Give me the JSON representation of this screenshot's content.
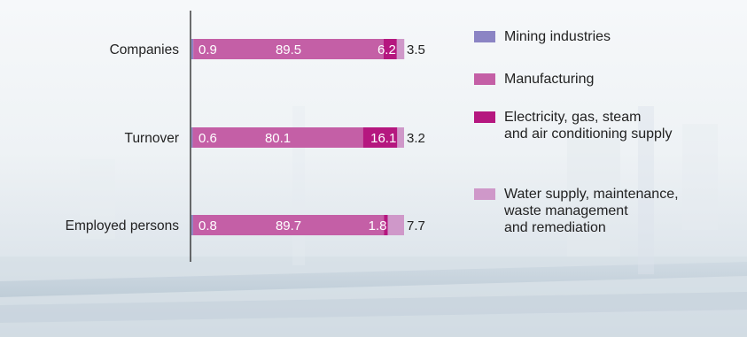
{
  "chart_data": {
    "type": "bar",
    "stacked": true,
    "orientation": "horizontal",
    "categories": [
      "Companies",
      "Turnover",
      "Employed persons"
    ],
    "series": [
      {
        "name": "Mining industries",
        "color": "#8b84c4",
        "values": [
          0.9,
          0.6,
          0.8
        ]
      },
      {
        "name": "Manufacturing",
        "color": "#c45fa6",
        "values": [
          89.5,
          80.1,
          89.7
        ]
      },
      {
        "name": "Electricity, gas, steam\nand air conditioning supply",
        "color": "#b5177f",
        "values": [
          6.2,
          16.1,
          1.8
        ]
      },
      {
        "name": "Water supply, maintenance,\nwaste management\nand remediation",
        "color": "#cf98c9",
        "values": [
          3.5,
          3.2,
          7.7
        ]
      }
    ],
    "xlim": [
      0,
      100
    ],
    "legend_position": "right",
    "grid": false
  }
}
